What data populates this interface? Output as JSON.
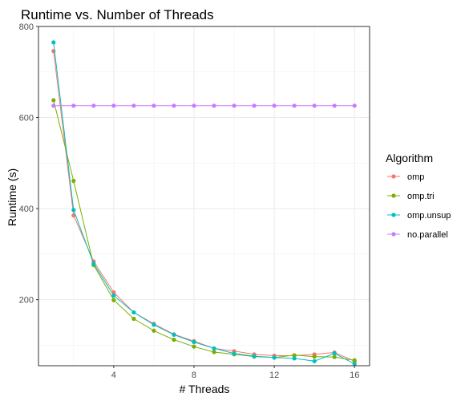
{
  "chart_data": {
    "type": "line",
    "title": "Runtime vs. Number of Threads",
    "xlabel": "# Threads",
    "ylabel": "Runtime (s)",
    "xlim": [
      0.25,
      16.75
    ],
    "ylim": [
      55,
      800
    ],
    "xticks": [
      4,
      8,
      12,
      16
    ],
    "yticks": [
      200,
      400,
      600,
      800
    ],
    "grid": true,
    "legend_position": "right",
    "legend_title": "Algorithm",
    "x": [
      1,
      2,
      3,
      4,
      5,
      6,
      7,
      8,
      9,
      10,
      11,
      12,
      13,
      14,
      15,
      16
    ],
    "series": [
      {
        "name": "omp",
        "color": "#F8766D",
        "values": [
          746,
          385,
          284,
          216,
          172,
          147,
          124,
          109,
          93,
          87,
          80,
          77,
          77,
          80,
          84,
          65
        ]
      },
      {
        "name": "omp.tri",
        "color": "#7CAE00",
        "values": [
          638,
          461,
          276,
          199,
          158,
          132,
          112,
          97,
          85,
          80,
          75,
          73,
          78,
          75,
          74,
          67
        ]
      },
      {
        "name": "omp.unsup",
        "color": "#00BFC4",
        "values": [
          765,
          397,
          279,
          209,
          172,
          145,
          123,
          107,
          93,
          82,
          76,
          73,
          71,
          65,
          82,
          59
        ]
      },
      {
        "name": "no.parallel",
        "color": "#C77CFF",
        "values": [
          626,
          626,
          626,
          626,
          626,
          626,
          626,
          626,
          626,
          626,
          626,
          626,
          626,
          626,
          626,
          626
        ]
      }
    ]
  }
}
